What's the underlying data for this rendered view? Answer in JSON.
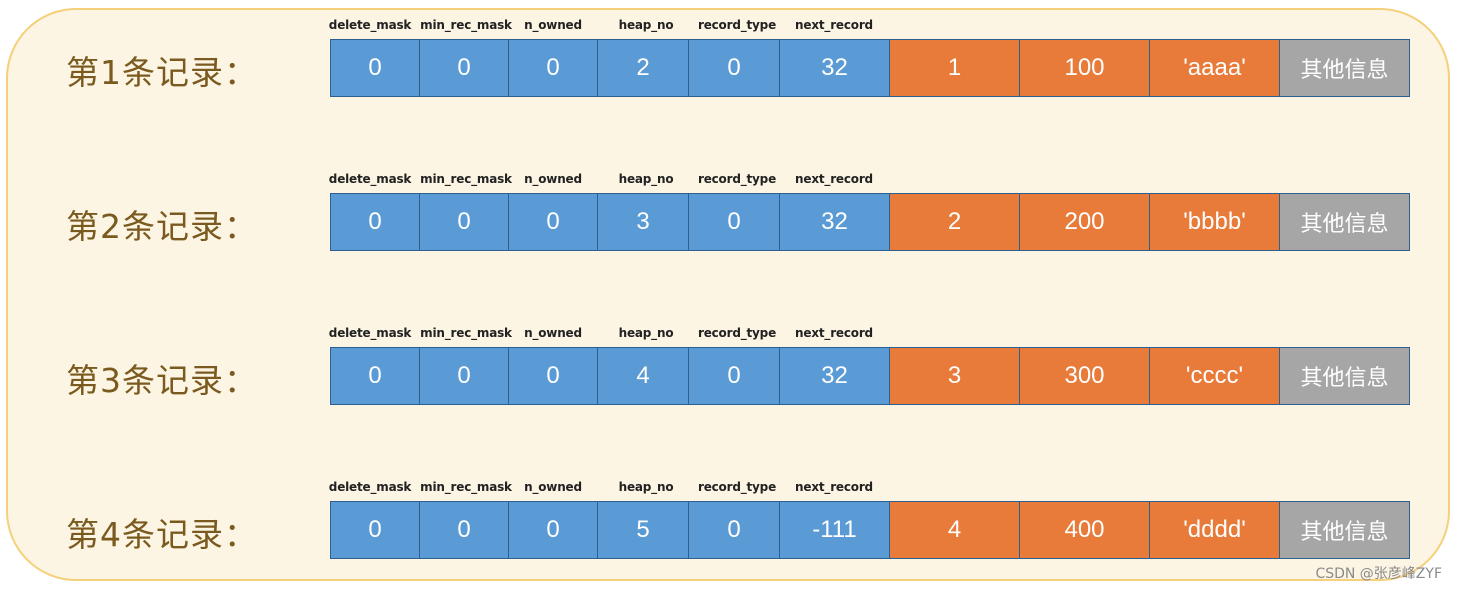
{
  "headers": [
    "delete_mask",
    "min_rec_mask",
    "n_owned",
    "heap_no",
    "record_type",
    "next_record"
  ],
  "records": [
    {
      "label": "第1条记录：",
      "header_values": [
        "0",
        "0",
        "0",
        "2",
        "0",
        "32"
      ],
      "data_values": [
        "1",
        "100",
        "'aaaa'"
      ],
      "other": "其他信息"
    },
    {
      "label": "第2条记录：",
      "header_values": [
        "0",
        "0",
        "0",
        "3",
        "0",
        "32"
      ],
      "data_values": [
        "2",
        "200",
        "'bbbb'"
      ],
      "other": "其他信息"
    },
    {
      "label": "第3条记录：",
      "header_values": [
        "0",
        "0",
        "0",
        "4",
        "0",
        "32"
      ],
      "data_values": [
        "3",
        "300",
        "'cccc'"
      ],
      "other": "其他信息"
    },
    {
      "label": "第4条记录：",
      "header_values": [
        "0",
        "0",
        "0",
        "5",
        "0",
        "-111"
      ],
      "data_values": [
        "4",
        "400",
        "'dddd'"
      ],
      "other": "其他信息"
    }
  ],
  "watermark": "CSDN @张彦峰ZYF",
  "colors": {
    "header_cell": "#5a9ad5",
    "data_cell": "#e87b3a",
    "other_cell": "#a6a6a6",
    "frame_fill": "#fdf5e4",
    "frame_border": "#f5d07a",
    "label_text": "#7a5a1e"
  }
}
